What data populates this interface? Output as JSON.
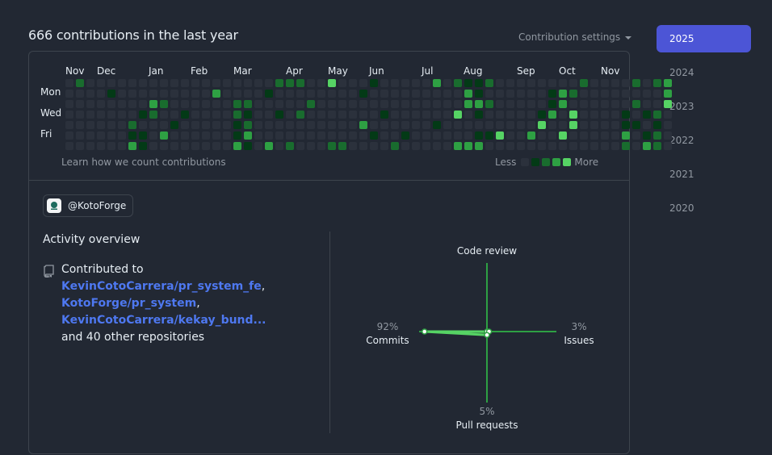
{
  "heading": "666 contributions in the last year",
  "settings_label": "Contribution settings",
  "years": [
    "2025",
    "2024",
    "2023",
    "2022",
    "2021",
    "2020"
  ],
  "active_year": "2025",
  "calendar": {
    "months": [
      "Nov",
      "Dec",
      "Jan",
      "Feb",
      "Mar",
      "Apr",
      "May",
      "Jun",
      "Jul",
      "Aug",
      "Sep",
      "Oct",
      "Nov"
    ],
    "day_labels": [
      "Mon",
      "Wed",
      "Fri"
    ],
    "colors": [
      "#2b313c",
      "#033a16",
      "#196c2e",
      "#2ea043",
      "#56d364"
    ],
    "weeks": [
      [
        0,
        0,
        0,
        0,
        0,
        0,
        0
      ],
      [
        2,
        0,
        0,
        0,
        0,
        0,
        0
      ],
      [
        0,
        0,
        0,
        0,
        0,
        0,
        0
      ],
      [
        0,
        0,
        0,
        0,
        0,
        0,
        0
      ],
      [
        0,
        1,
        0,
        0,
        0,
        0,
        0
      ],
      [
        0,
        0,
        0,
        0,
        0,
        0,
        0
      ],
      [
        0,
        0,
        0,
        0,
        2,
        1,
        3
      ],
      [
        0,
        0,
        0,
        1,
        0,
        1,
        1
      ],
      [
        0,
        0,
        3,
        2,
        0,
        0,
        0
      ],
      [
        0,
        0,
        2,
        0,
        0,
        3,
        0
      ],
      [
        0,
        0,
        0,
        0,
        1,
        0,
        0
      ],
      [
        0,
        0,
        0,
        1,
        0,
        0,
        0
      ],
      [
        0,
        0,
        0,
        0,
        0,
        0,
        0
      ],
      [
        0,
        0,
        0,
        0,
        0,
        0,
        0
      ],
      [
        0,
        3,
        0,
        0,
        0,
        0,
        0
      ],
      [
        0,
        0,
        0,
        0,
        0,
        0,
        0
      ],
      [
        0,
        0,
        2,
        2,
        1,
        1,
        3
      ],
      [
        0,
        0,
        2,
        1,
        2,
        3,
        1
      ],
      [
        0,
        0,
        0,
        0,
        0,
        0,
        0
      ],
      [
        0,
        1,
        0,
        0,
        0,
        0,
        3
      ],
      [
        2,
        0,
        0,
        1,
        0,
        0,
        0
      ],
      [
        2,
        0,
        0,
        0,
        0,
        0,
        2
      ],
      [
        2,
        0,
        0,
        2,
        0,
        0,
        0
      ],
      [
        0,
        0,
        2,
        0,
        0,
        0,
        0
      ],
      [
        0,
        0,
        0,
        0,
        0,
        0,
        0
      ],
      [
        4,
        0,
        0,
        0,
        0,
        0,
        2
      ],
      [
        0,
        0,
        0,
        0,
        0,
        0,
        2
      ],
      [
        0,
        0,
        0,
        0,
        0,
        0,
        0
      ],
      [
        0,
        1,
        0,
        0,
        3,
        0,
        0
      ],
      [
        1,
        0,
        0,
        0,
        0,
        1,
        0
      ],
      [
        0,
        0,
        0,
        1,
        0,
        0,
        0
      ],
      [
        0,
        0,
        0,
        0,
        0,
        0,
        2
      ],
      [
        0,
        0,
        0,
        0,
        0,
        1,
        0
      ],
      [
        0,
        0,
        0,
        0,
        0,
        0,
        0
      ],
      [
        0,
        0,
        0,
        0,
        0,
        0,
        0
      ],
      [
        3,
        0,
        0,
        0,
        1,
        0,
        0
      ],
      [
        0,
        0,
        0,
        0,
        0,
        0,
        0
      ],
      [
        2,
        0,
        0,
        4,
        0,
        0,
        3
      ],
      [
        1,
        3,
        3,
        0,
        0,
        0,
        3
      ],
      [
        1,
        1,
        3,
        1,
        0,
        1,
        3
      ],
      [
        2,
        0,
        2,
        0,
        0,
        1,
        0
      ],
      [
        0,
        0,
        0,
        0,
        0,
        4,
        0
      ],
      [
        0,
        0,
        0,
        0,
        0,
        0,
        0
      ],
      [
        0,
        0,
        0,
        0,
        0,
        0,
        0
      ],
      [
        0,
        0,
        0,
        0,
        0,
        3,
        0
      ],
      [
        0,
        0,
        0,
        1,
        4,
        0,
        0
      ],
      [
        0,
        1,
        1,
        3,
        0,
        0,
        0
      ],
      [
        0,
        3,
        3,
        0,
        0,
        4,
        0
      ],
      [
        0,
        2,
        0,
        4,
        4,
        0,
        0
      ],
      [
        2,
        0,
        0,
        0,
        0,
        0,
        0
      ],
      [
        0,
        0,
        0,
        0,
        0,
        0,
        0
      ],
      [
        0,
        0,
        0,
        0,
        0,
        0,
        0
      ],
      [
        0,
        0,
        0,
        0,
        0,
        0,
        0
      ],
      [
        0,
        0,
        0,
        1,
        1,
        3,
        2
      ],
      [
        2,
        0,
        2,
        0,
        1,
        0,
        0
      ],
      [
        0,
        0,
        0,
        1,
        0,
        1,
        3
      ],
      [
        2,
        0,
        0,
        2,
        1,
        2,
        2
      ],
      [
        3,
        3,
        4,
        0,
        0,
        0,
        0
      ]
    ]
  },
  "learn_link": "Learn how we count contributions",
  "legend": {
    "less": "Less",
    "more": "More"
  },
  "org_handle": "@KotoForge",
  "activity_title": "Activity overview",
  "contributed": {
    "prefix": "Contributed to",
    "repos": [
      "KevinCotoCarrera/pr_system_fe",
      "KotoForge/pr_system",
      "KevinCotoCarrera/kekay_bund..."
    ],
    "suffix": "and 40 other repositories"
  },
  "radar": {
    "code_review": {
      "label": "Code review",
      "value": 0
    },
    "commits": {
      "label": "Commits",
      "pct": "92%",
      "value": 92
    },
    "issues": {
      "label": "Issues",
      "pct": "3%",
      "value": 3
    },
    "pull_requests": {
      "label": "Pull requests",
      "pct": "5%",
      "value": 5
    }
  }
}
